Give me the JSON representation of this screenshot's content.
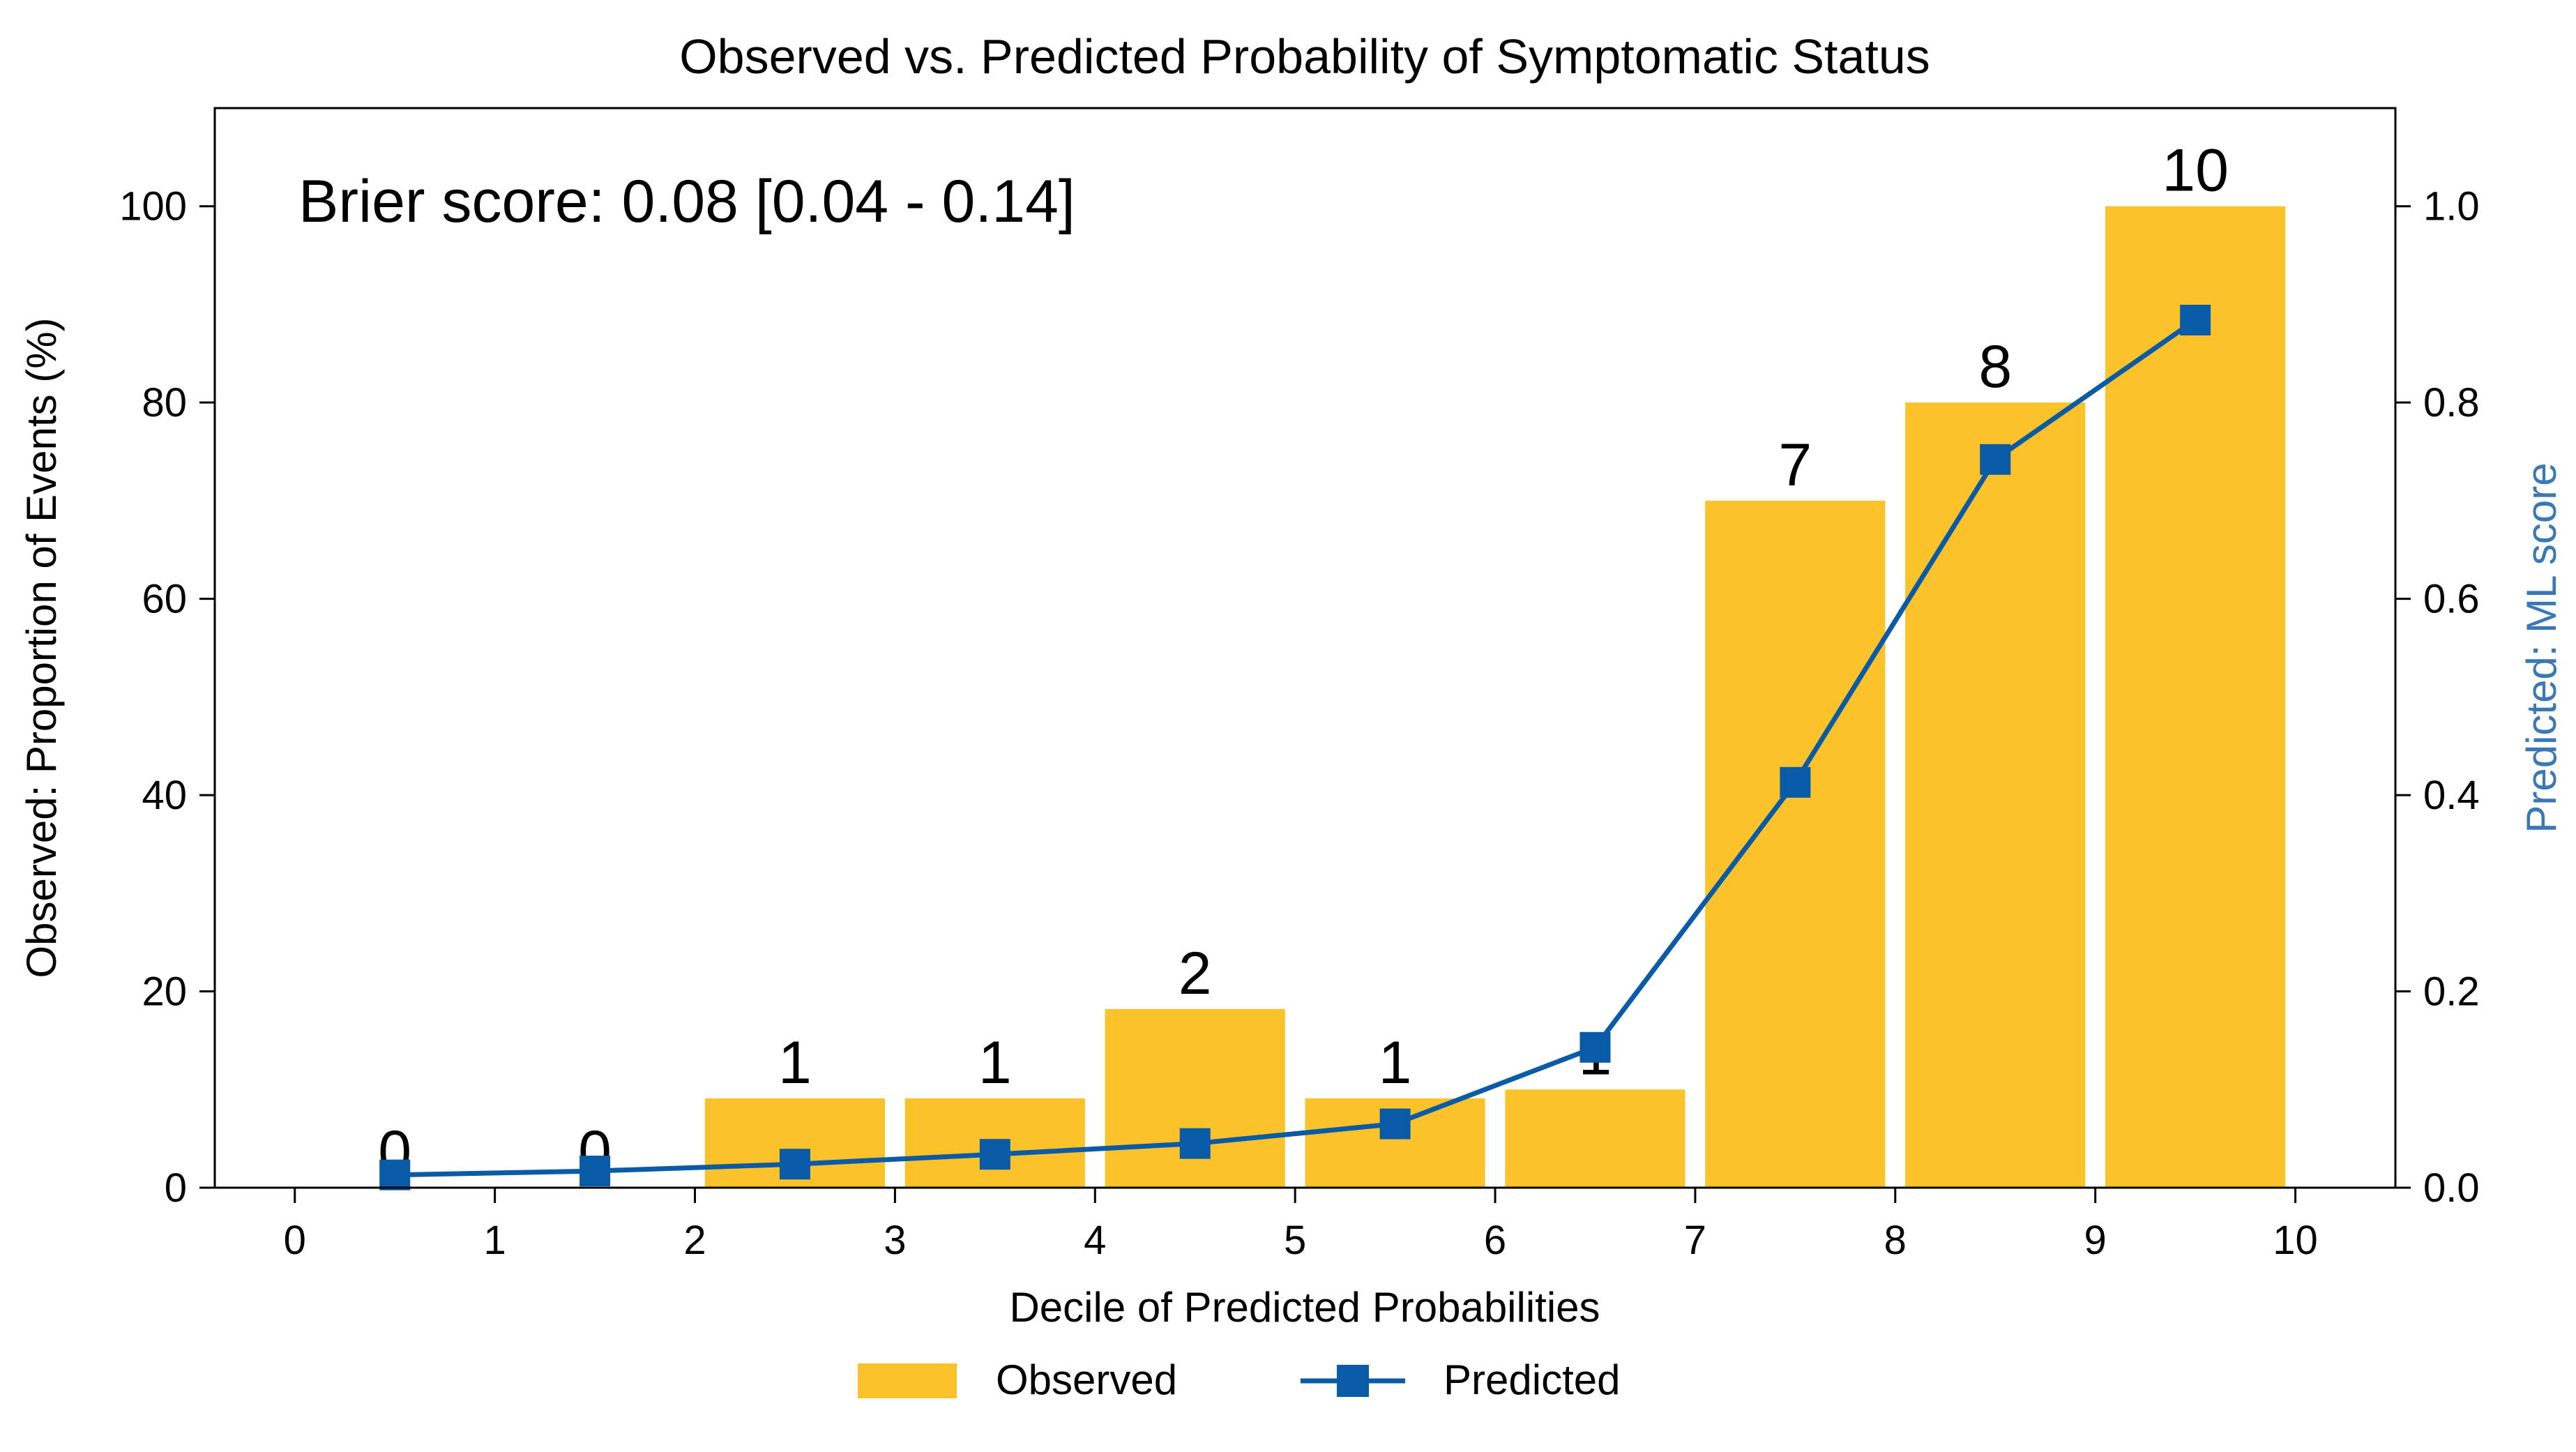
{
  "chart_data": {
    "type": "bar",
    "title": "Observed vs. Predicted Probability of Symptomatic Status",
    "xlabel": "Decile of Predicted Probabilities",
    "ylabel": "Observed: Proportion of Events (%)",
    "y2label": "Predicted: ML score",
    "annotation": "Brier score: 0.08 [0.04 - 0.14]",
    "xlim": [
      -0.4,
      10.5
    ],
    "ylim": [
      0,
      110
    ],
    "y2lim": [
      0,
      1.1
    ],
    "xticks": [
      "0",
      "1",
      "2",
      "3",
      "4",
      "5",
      "6",
      "7",
      "8",
      "9",
      "10"
    ],
    "yticks": [
      "0",
      "20",
      "40",
      "60",
      "80",
      "100"
    ],
    "y2ticks": [
      "0.0",
      "0.2",
      "0.4",
      "0.6",
      "0.8",
      "1.0"
    ],
    "grid": false,
    "legend_position": "bottom-center",
    "colors": {
      "observed": "#fcc22a",
      "predicted": "#0a5ba7",
      "y2label": "#3a78b5"
    },
    "bar_width": 0.9,
    "series": [
      {
        "name": "Observed",
        "type": "bar",
        "x": [
          0.5,
          1.5,
          2.5,
          3.5,
          4.5,
          5.5,
          6.5,
          7.5,
          8.5,
          9.5
        ],
        "values": [
          0,
          0,
          9.1,
          9.1,
          18.2,
          9.1,
          10,
          70,
          80,
          100
        ],
        "labels": [
          "0",
          "0",
          "1",
          "1",
          "2",
          "1",
          "1",
          "7",
          "8",
          "10"
        ]
      },
      {
        "name": "Predicted",
        "type": "line",
        "marker": "square",
        "axis": "right",
        "x": [
          0.5,
          1.5,
          2.5,
          3.5,
          4.5,
          5.5,
          6.5,
          7.5,
          8.5,
          9.5
        ],
        "values": [
          0.013,
          0.017,
          0.024,
          0.034,
          0.045,
          0.065,
          0.143,
          0.413,
          0.742,
          0.884
        ]
      }
    ]
  }
}
